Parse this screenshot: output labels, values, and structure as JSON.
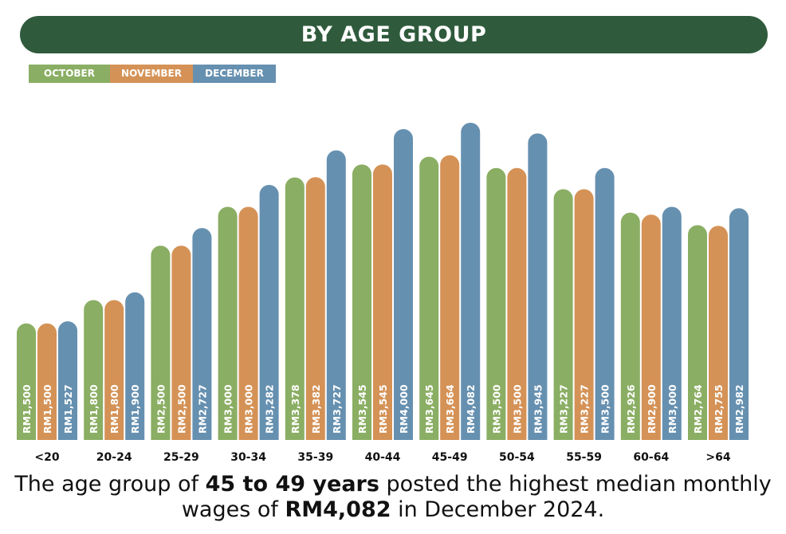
{
  "chart_data": {
    "type": "bar",
    "title": "BY AGE GROUP",
    "categories": [
      "<20",
      "20-24",
      "25-29",
      "30-34",
      "35-39",
      "40-44",
      "45-49",
      "50-54",
      "55-59",
      "60-64",
      ">64"
    ],
    "series": [
      {
        "name": "OCTOBER",
        "color": "#8aae63",
        "values": [
          1500,
          1800,
          2500,
          3000,
          3378,
          3545,
          3645,
          3500,
          3227,
          2926,
          2764
        ]
      },
      {
        "name": "NOVEMBER",
        "color": "#d59256",
        "values": [
          1500,
          1800,
          2500,
          3000,
          3382,
          3545,
          3664,
          3500,
          3227,
          2900,
          2755
        ]
      },
      {
        "name": "DECEMBER",
        "color": "#6690b0",
        "values": [
          1527,
          1900,
          2727,
          3282,
          3727,
          4000,
          4082,
          3945,
          3500,
          3000,
          2982
        ]
      }
    ],
    "value_prefix": "RM",
    "ylim": [
      0,
      4082
    ],
    "grid": false,
    "legend_position": "top-left"
  },
  "caption": {
    "part1": "The age group of ",
    "bold1": "45 to 49 years",
    "part2": " posted the highest median monthly wages of ",
    "bold2": "RM4,082",
    "part3": " in December 2024."
  }
}
